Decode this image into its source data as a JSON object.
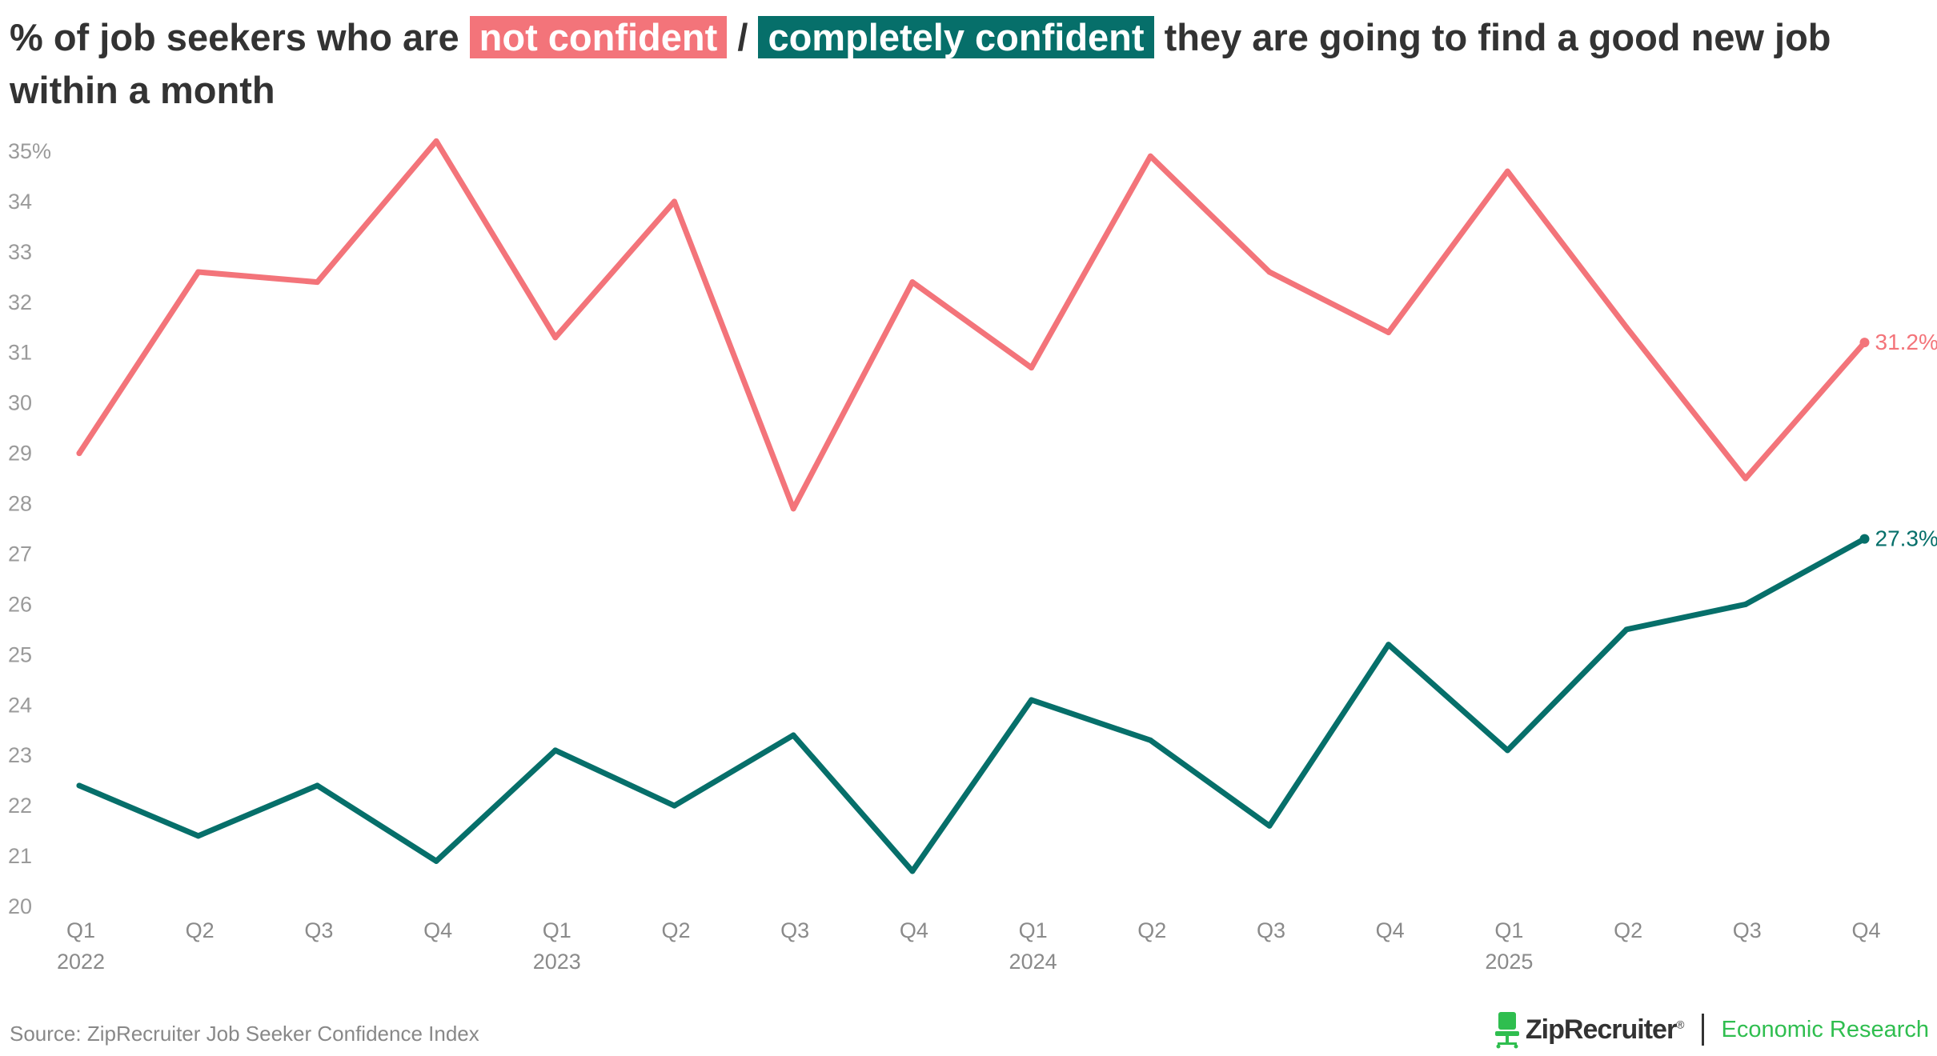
{
  "title": {
    "prefix": "% of job seekers who are ",
    "highlight_1": "not confident",
    "separator": " / ",
    "highlight_2": "completely confident",
    "suffix": " they are going to find a good new job within a month"
  },
  "colors": {
    "not_confident": "#f3747a",
    "completely_confident": "#066f6a",
    "axis_text": "#9a9a9a",
    "brand_accent": "#2fbe4f"
  },
  "chart_data": {
    "type": "line",
    "title": "% of job seekers who are not confident / completely confident they are going to find a good new job within a month",
    "categories": [
      "Q1",
      "Q2",
      "Q3",
      "Q4",
      "Q1",
      "Q2",
      "Q3",
      "Q4",
      "Q1",
      "Q2",
      "Q3",
      "Q4",
      "Q1",
      "Q2",
      "Q3",
      "Q4"
    ],
    "year_labels": [
      {
        "index": 0,
        "label": "2022"
      },
      {
        "index": 4,
        "label": "2023"
      },
      {
        "index": 8,
        "label": "2024"
      },
      {
        "index": 12,
        "label": "2025"
      }
    ],
    "series": [
      {
        "name": "not confident",
        "color": "#f3747a",
        "values": [
          29.0,
          32.6,
          32.4,
          35.2,
          31.3,
          34.0,
          27.9,
          32.4,
          30.7,
          34.9,
          32.6,
          31.4,
          34.6,
          31.5,
          28.5,
          31.2
        ],
        "end_label": "31.2%"
      },
      {
        "name": "completely confident",
        "color": "#066f6a",
        "values": [
          22.4,
          21.4,
          22.4,
          20.9,
          23.1,
          22.0,
          23.4,
          20.7,
          24.1,
          23.3,
          21.6,
          25.2,
          23.1,
          25.5,
          26.0,
          27.3
        ],
        "end_label": "27.3%"
      }
    ],
    "y_ticks": [
      "35%",
      "34",
      "33",
      "32",
      "31",
      "30",
      "29",
      "28",
      "27",
      "26",
      "25",
      "24",
      "23",
      "22",
      "21",
      "20"
    ],
    "y_tick_values": [
      35,
      34,
      33,
      32,
      31,
      30,
      29,
      28,
      27,
      26,
      25,
      24,
      23,
      22,
      21,
      20
    ],
    "ylim": [
      20,
      35
    ],
    "xlabel": "",
    "ylabel": "",
    "grid": false,
    "legend": "in-title"
  },
  "footer": {
    "source": "Source: ZipRecruiter Job Seeker Confidence Index",
    "brand_name": "ZipRecruiter",
    "brand_mark": "®",
    "brand_division": "Economic Research"
  }
}
